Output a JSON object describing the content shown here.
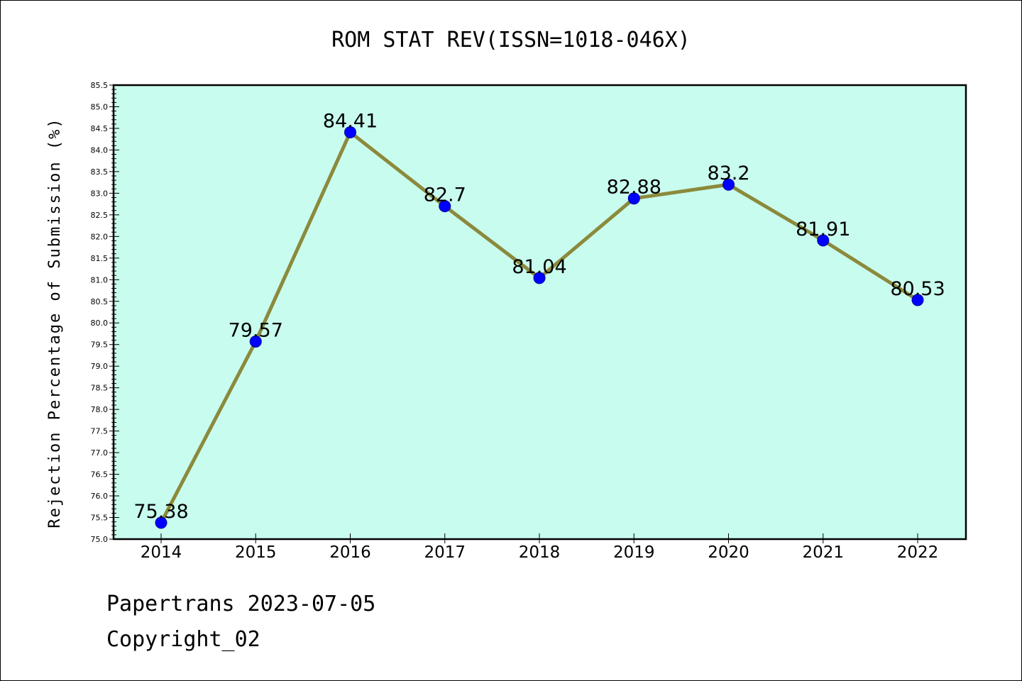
{
  "chart_data": {
    "type": "line",
    "title": "ROM STAT REV(ISSN=1018-046X)",
    "xlabel": "",
    "ylabel": "Rejection Percentage of Submission (%)",
    "categories": [
      "2014",
      "2015",
      "2016",
      "2017",
      "2018",
      "2019",
      "2020",
      "2021",
      "2022"
    ],
    "series": [
      {
        "values": [
          75.38,
          79.57,
          84.41,
          82.7,
          81.04,
          82.88,
          83.2,
          81.91,
          80.53
        ],
        "labels": [
          "75.38",
          "79.57",
          "84.41",
          "82.7",
          "81.04",
          "82.88",
          "83.2",
          "81.91",
          "80.53"
        ]
      }
    ],
    "ylim": [
      75.0,
      85.5
    ],
    "ytick_step": 0.5,
    "grid": false,
    "legend": "none",
    "colors": {
      "line": "#8b8a3c",
      "marker": "#0000ff",
      "plot_background": "#c8fcee"
    }
  },
  "footer": {
    "line1": "Papertrans 2023-07-05",
    "line2": "Copyright_02"
  }
}
